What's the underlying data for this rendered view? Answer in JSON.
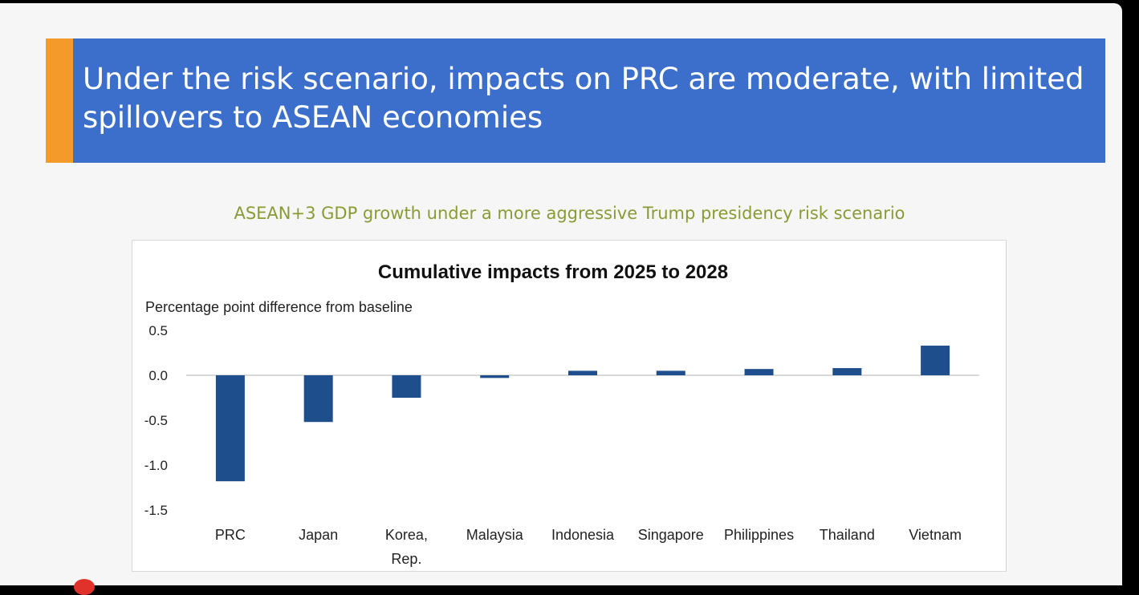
{
  "slide": {
    "title": "Under the risk scenario, impacts on PRC are moderate, with limited spillovers to ASEAN economies",
    "subtitle": "ASEAN+3 GDP growth under a more aggressive Trump presidency risk scenario"
  },
  "colors": {
    "banner": "#3b6fcb",
    "banner_accent": "#f39a2a",
    "subtitle": "#8a9a35",
    "bar": "#1f4e8c"
  },
  "chart_data": {
    "type": "bar",
    "title": "Cumulative impacts from 2025 to 2028",
    "ylabel": "Percentage point difference from baseline",
    "xlabel": "",
    "categories": [
      "PRC",
      "Japan",
      "Korea, Rep.",
      "Malaysia",
      "Indonesia",
      "Singapore",
      "Philippines",
      "Thailand",
      "Vietnam"
    ],
    "category_lines": [
      [
        "PRC"
      ],
      [
        "Japan"
      ],
      [
        "Korea,",
        "Rep."
      ],
      [
        "Malaysia"
      ],
      [
        "Indonesia"
      ],
      [
        "Singapore"
      ],
      [
        "Philippines"
      ],
      [
        "Thailand"
      ],
      [
        "Vietnam"
      ]
    ],
    "values": [
      -1.18,
      -0.52,
      -0.25,
      -0.03,
      0.05,
      0.05,
      0.07,
      0.08,
      0.33
    ],
    "ylim": [
      -1.5,
      0.5
    ],
    "yticks": [
      "0.5",
      "0.0",
      "-0.5",
      "-1.0",
      "-1.5"
    ],
    "grid": false,
    "legend": "none"
  }
}
